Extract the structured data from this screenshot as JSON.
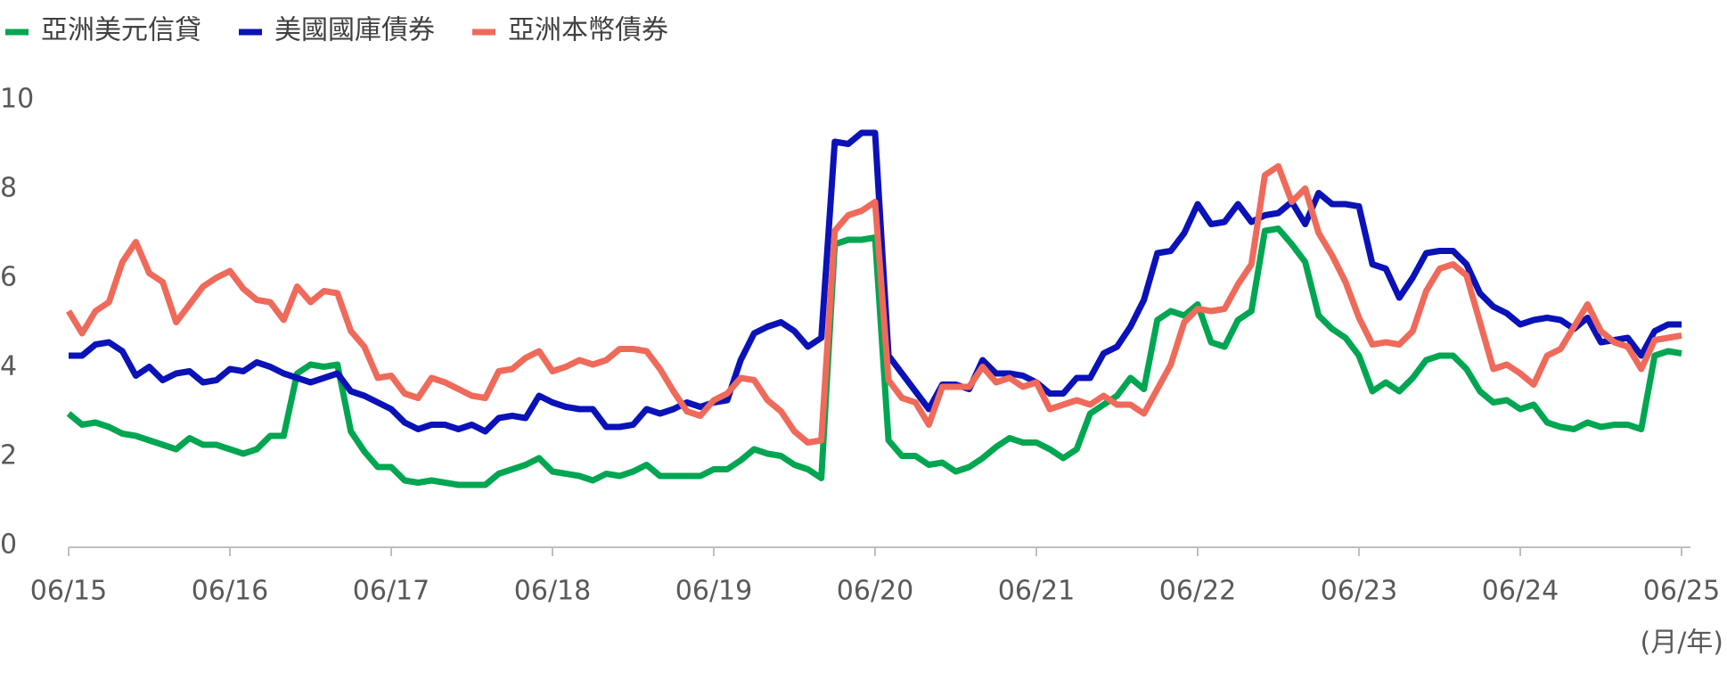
{
  "chart_data": {
    "type": "line",
    "x_label": "(月/年)",
    "categories": [
      "06/15",
      null,
      null,
      null,
      null,
      null,
      null,
      null,
      null,
      null,
      null,
      null,
      "06/16",
      null,
      null,
      null,
      null,
      null,
      null,
      null,
      null,
      null,
      null,
      null,
      "06/17",
      null,
      null,
      null,
      null,
      null,
      null,
      null,
      null,
      null,
      null,
      null,
      "06/18",
      null,
      null,
      null,
      null,
      null,
      null,
      null,
      null,
      null,
      null,
      null,
      "06/19",
      null,
      null,
      null,
      null,
      null,
      null,
      null,
      null,
      null,
      null,
      null,
      "06/20",
      null,
      null,
      null,
      null,
      null,
      null,
      null,
      null,
      null,
      null,
      null,
      "06/21",
      null,
      null,
      null,
      null,
      null,
      null,
      null,
      null,
      null,
      null,
      null,
      "06/22",
      null,
      null,
      null,
      null,
      null,
      null,
      null,
      null,
      null,
      null,
      null,
      "06/23",
      null,
      null,
      null,
      null,
      null,
      null,
      null,
      null,
      null,
      null,
      null,
      "06/24",
      null,
      null,
      null,
      null,
      null,
      null,
      null,
      null,
      null,
      null,
      null,
      "06/25"
    ],
    "series": [
      {
        "name": "亞洲美元信貸",
        "color": "#00a651",
        "values": [
          3.0,
          2.75,
          2.8,
          2.7,
          2.55,
          2.5,
          2.4,
          2.3,
          2.2,
          2.45,
          2.3,
          2.3,
          2.2,
          2.1,
          2.2,
          2.5,
          2.5,
          3.9,
          4.1,
          4.05,
          4.1,
          2.6,
          2.15,
          1.8,
          1.8,
          1.5,
          1.45,
          1.5,
          1.45,
          1.4,
          1.4,
          1.4,
          1.65,
          1.75,
          1.85,
          2.0,
          1.7,
          1.65,
          1.6,
          1.5,
          1.65,
          1.6,
          1.7,
          1.85,
          1.6,
          1.6,
          1.6,
          1.6,
          1.75,
          1.75,
          1.95,
          2.2,
          2.1,
          2.05,
          1.85,
          1.75,
          1.55,
          6.8,
          6.9,
          6.9,
          6.95,
          2.4,
          2.05,
          2.05,
          1.85,
          1.9,
          1.7,
          1.8,
          2.0,
          2.25,
          2.45,
          2.35,
          2.35,
          2.2,
          2.0,
          2.2,
          3.0,
          3.2,
          3.4,
          3.8,
          3.55,
          5.1,
          5.3,
          5.2,
          5.45,
          4.6,
          4.5,
          5.1,
          5.3,
          7.1,
          7.15,
          6.8,
          6.4,
          5.2,
          4.9,
          4.7,
          4.3,
          3.5,
          3.7,
          3.5,
          3.8,
          4.2,
          4.3,
          4.3,
          4.0,
          3.5,
          3.25,
          3.3,
          3.1,
          3.2,
          2.8,
          2.7,
          2.65,
          2.8,
          2.7,
          2.75,
          2.75,
          2.65,
          4.3,
          4.4,
          4.35
        ]
      },
      {
        "name": "美國國庫債券",
        "color": "#0a12b8",
        "values": [
          4.3,
          4.3,
          4.55,
          4.6,
          4.4,
          3.85,
          4.05,
          3.75,
          3.9,
          3.95,
          3.7,
          3.75,
          4.0,
          3.95,
          4.15,
          4.05,
          3.9,
          3.8,
          3.7,
          3.8,
          3.9,
          3.5,
          3.4,
          3.25,
          3.1,
          2.8,
          2.65,
          2.75,
          2.75,
          2.65,
          2.75,
          2.6,
          2.9,
          2.95,
          2.9,
          3.4,
          3.25,
          3.15,
          3.1,
          3.1,
          2.7,
          2.7,
          2.75,
          3.1,
          3.0,
          3.1,
          3.25,
          3.15,
          3.25,
          3.3,
          4.2,
          4.8,
          4.95,
          5.05,
          4.85,
          4.5,
          4.7,
          9.1,
          9.05,
          9.3,
          9.3,
          4.3,
          3.9,
          3.5,
          3.1,
          3.65,
          3.65,
          3.55,
          4.2,
          3.9,
          3.9,
          3.85,
          3.7,
          3.45,
          3.45,
          3.8,
          3.8,
          4.35,
          4.5,
          4.95,
          5.55,
          6.6,
          6.65,
          7.05,
          7.7,
          7.25,
          7.3,
          7.7,
          7.3,
          7.45,
          7.5,
          7.75,
          7.25,
          7.95,
          7.7,
          7.7,
          7.65,
          6.35,
          6.25,
          5.6,
          6.05,
          6.6,
          6.65,
          6.65,
          6.35,
          5.7,
          5.4,
          5.25,
          5.0,
          5.1,
          5.15,
          5.1,
          4.9,
          5.15,
          4.6,
          4.65,
          4.7,
          4.3,
          4.85,
          5.0,
          5.0
        ]
      },
      {
        "name": "亞洲本幣債券",
        "color": "#ef6a5a",
        "values": [
          5.3,
          4.8,
          5.3,
          5.5,
          6.4,
          6.85,
          6.15,
          5.95,
          5.05,
          5.45,
          5.85,
          6.05,
          6.2,
          5.8,
          5.55,
          5.5,
          5.1,
          5.85,
          5.5,
          5.75,
          5.7,
          4.85,
          4.5,
          3.8,
          3.85,
          3.45,
          3.35,
          3.8,
          3.7,
          3.55,
          3.4,
          3.35,
          3.95,
          4.0,
          4.25,
          4.4,
          3.95,
          4.05,
          4.2,
          4.1,
          4.2,
          4.45,
          4.45,
          4.4,
          4.0,
          3.5,
          3.05,
          2.95,
          3.3,
          3.45,
          3.8,
          3.75,
          3.3,
          3.05,
          2.6,
          2.35,
          2.4,
          7.1,
          7.45,
          7.55,
          7.75,
          3.75,
          3.35,
          3.25,
          2.75,
          3.6,
          3.6,
          3.6,
          4.05,
          3.7,
          3.8,
          3.6,
          3.7,
          3.1,
          3.2,
          3.3,
          3.2,
          3.4,
          3.2,
          3.2,
          3.0,
          3.55,
          4.1,
          5.05,
          5.35,
          5.3,
          5.35,
          5.9,
          6.35,
          8.35,
          8.55,
          7.75,
          8.05,
          7.05,
          6.55,
          5.95,
          5.15,
          4.55,
          4.6,
          4.55,
          4.85,
          5.75,
          6.25,
          6.35,
          6.1,
          5.05,
          4.0,
          4.1,
          3.9,
          3.65,
          4.3,
          4.45,
          4.95,
          5.45,
          4.85,
          4.6,
          4.5,
          4.0,
          4.65,
          4.7,
          4.75
        ]
      }
    ],
    "ylim": [
      0,
      10
    ],
    "yticks": [
      0,
      2,
      4,
      6,
      8,
      10
    ],
    "grid": false,
    "legend": "top-left"
  }
}
